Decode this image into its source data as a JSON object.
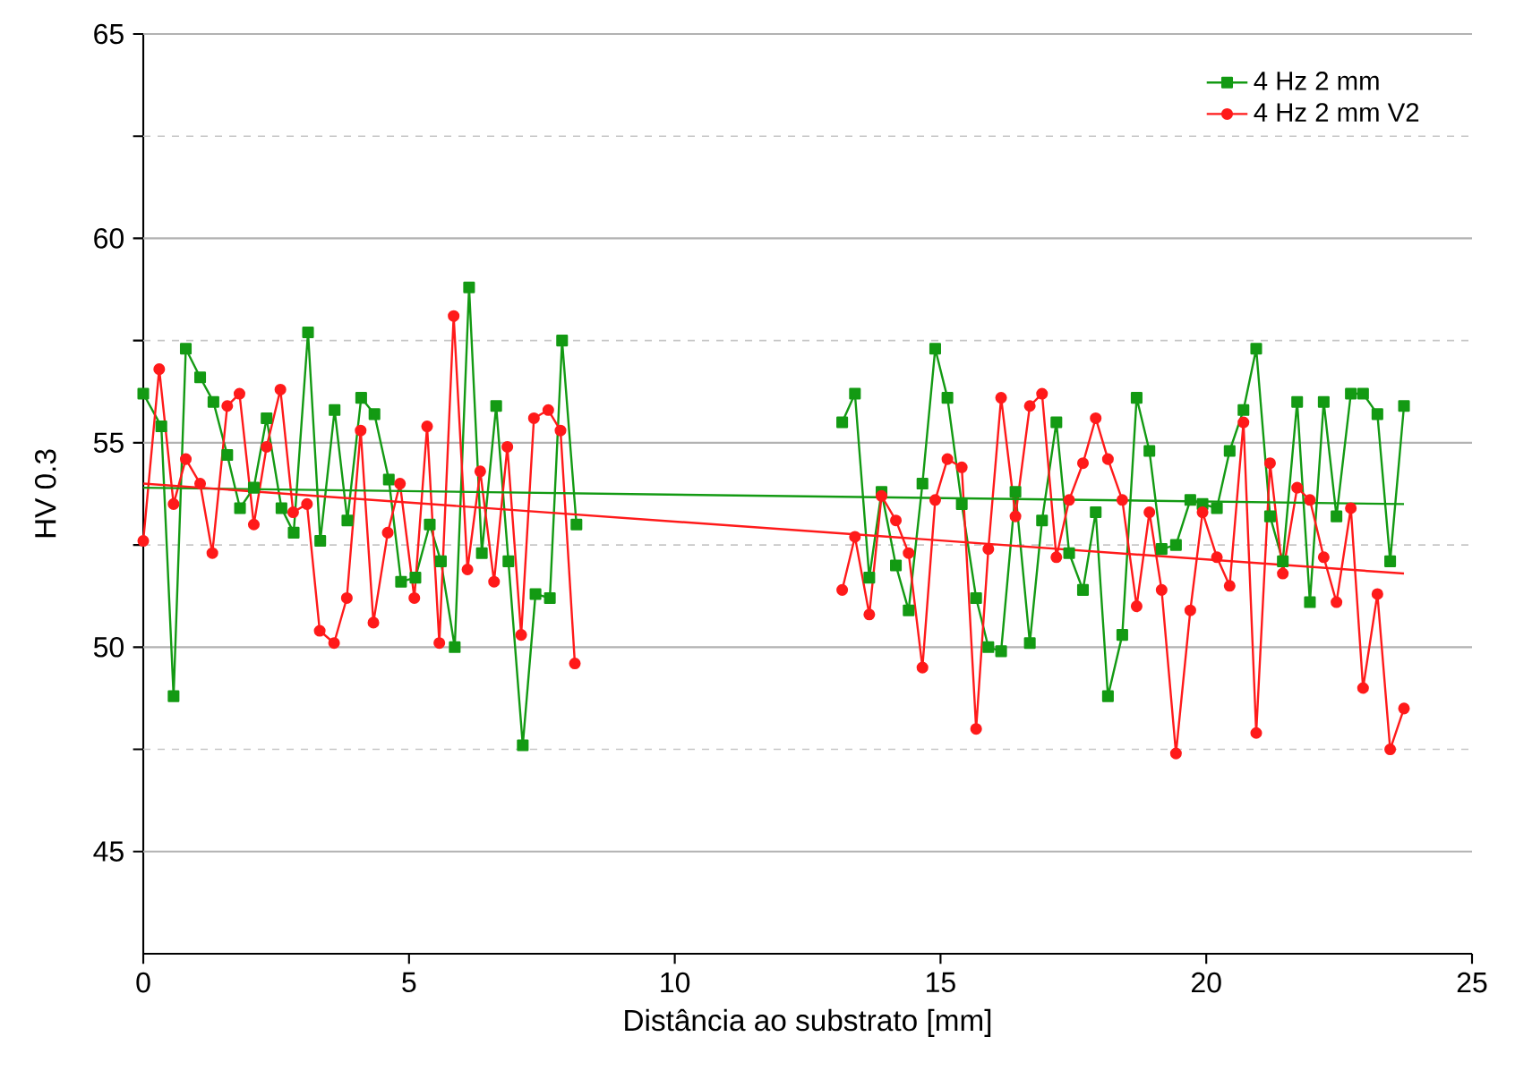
{
  "chart_data": {
    "type": "line",
    "xlabel": "Distância ao substrato [mm]",
    "ylabel": "HV 0.3",
    "xlim": [
      0,
      25
    ],
    "xticks": [
      0,
      5,
      10,
      15,
      20,
      25
    ],
    "ylim": [
      42.5,
      65
    ],
    "yticks": [
      45,
      {
        "value": 47.5,
        "label": null
      },
      50,
      {
        "value": 52.5,
        "label": null
      },
      55,
      {
        "value": 57.5,
        "label": null
      },
      60,
      {
        "value": 62.5,
        "label": null
      },
      65
    ],
    "grid": "y",
    "legend": "top right",
    "series": [
      {
        "name": "4 Hz 2 mm",
        "color": "#139a13",
        "marker": "square",
        "x": [
          0,
          0.34,
          0.57,
          0.8,
          1.07,
          1.32,
          1.58,
          1.82,
          2.08,
          2.32,
          2.6,
          2.83,
          3.1,
          3.33,
          3.6,
          3.84,
          4.1,
          4.35,
          4.62,
          4.85,
          5.12,
          5.39,
          5.6,
          5.86,
          6.13,
          6.37,
          6.64,
          6.87,
          7.14,
          7.38,
          7.65,
          7.88,
          8.15,
          null,
          13.15,
          13.39,
          13.66,
          13.89,
          14.16,
          14.4,
          14.66,
          14.9,
          15.13,
          15.4,
          15.67,
          15.9,
          16.14,
          16.41,
          16.68,
          16.91,
          17.18,
          17.42,
          17.68,
          17.92,
          18.15,
          18.42,
          18.69,
          18.93,
          19.16,
          19.43,
          19.7,
          19.93,
          20.2,
          20.44,
          20.7,
          20.94,
          21.2,
          21.44,
          21.71,
          21.95,
          22.21,
          22.45,
          22.72,
          22.95,
          23.22,
          23.46,
          23.72
        ],
        "values": [
          56.2,
          55.4,
          48.8,
          57.3,
          56.6,
          56.0,
          54.7,
          53.4,
          53.9,
          55.6,
          53.4,
          52.8,
          57.7,
          52.6,
          55.8,
          53.1,
          56.1,
          55.7,
          54.1,
          51.6,
          51.7,
          53.0,
          52.1,
          50.0,
          58.8,
          52.3,
          55.9,
          52.1,
          47.6,
          51.3,
          51.2,
          57.5,
          53.0,
          null,
          55.5,
          56.2,
          51.7,
          53.8,
          52.0,
          50.9,
          54.0,
          57.3,
          56.1,
          53.5,
          51.2,
          50.0,
          49.9,
          53.8,
          50.1,
          53.1,
          55.5,
          52.3,
          51.4,
          53.3,
          48.8,
          50.3,
          56.1,
          54.8,
          52.4,
          52.5,
          53.6,
          53.5,
          53.4,
          54.8,
          55.8,
          57.3,
          53.2,
          52.1,
          56.0,
          51.1,
          56.0,
          53.2,
          56.2,
          56.2,
          55.7,
          52.1,
          55.9
        ]
      },
      {
        "name": "4 Hz 2 mm V2",
        "color": "#ff1a1a",
        "marker": "circle",
        "x": [
          0,
          0.3,
          0.57,
          0.8,
          1.07,
          1.3,
          1.58,
          1.81,
          2.08,
          2.32,
          2.58,
          2.82,
          3.08,
          3.32,
          3.59,
          3.83,
          4.09,
          4.33,
          4.6,
          4.83,
          5.1,
          5.34,
          5.57,
          5.84,
          6.1,
          6.34,
          6.6,
          6.85,
          7.11,
          7.35,
          7.62,
          7.85,
          8.12,
          null,
          13.15,
          13.39,
          13.66,
          13.89,
          14.16,
          14.4,
          14.66,
          14.9,
          15.13,
          15.4,
          15.67,
          15.9,
          16.14,
          16.41,
          16.68,
          16.91,
          17.18,
          17.42,
          17.68,
          17.92,
          18.15,
          18.42,
          18.69,
          18.93,
          19.16,
          19.43,
          19.7,
          19.93,
          20.2,
          20.44,
          20.7,
          20.94,
          21.2,
          21.44,
          21.71,
          21.95,
          22.21,
          22.45,
          22.72,
          22.95,
          23.22,
          23.46,
          23.72
        ],
        "values": [
          52.6,
          56.8,
          53.5,
          54.6,
          54.0,
          52.3,
          55.9,
          56.2,
          53.0,
          54.9,
          56.3,
          53.3,
          53.5,
          50.4,
          50.1,
          51.2,
          55.3,
          50.6,
          52.8,
          54.0,
          51.2,
          55.4,
          50.1,
          58.1,
          51.9,
          54.3,
          51.6,
          54.9,
          50.3,
          55.6,
          55.8,
          55.3,
          49.6,
          null,
          51.4,
          52.7,
          50.8,
          53.7,
          53.1,
          52.3,
          49.5,
          53.6,
          54.6,
          54.4,
          48.0,
          52.4,
          56.1,
          53.2,
          55.9,
          56.2,
          52.2,
          53.6,
          54.5,
          55.6,
          54.6,
          53.6,
          51.0,
          53.3,
          51.4,
          47.4,
          50.9,
          53.3,
          52.2,
          51.5,
          55.5,
          47.9,
          54.5,
          51.8,
          53.9,
          53.6,
          52.2,
          51.1,
          53.4,
          49.0,
          51.3,
          47.5,
          48.5
        ]
      },
      {
        "color": "#139a13",
        "marker": "none",
        "x": [
          0,
          23.72
        ],
        "values": [
          53.9,
          53.5
        ]
      },
      {
        "color": "#ff1a1a",
        "marker": "none",
        "x": [
          0,
          23.72
        ],
        "values": [
          54.0,
          51.8
        ]
      }
    ]
  }
}
